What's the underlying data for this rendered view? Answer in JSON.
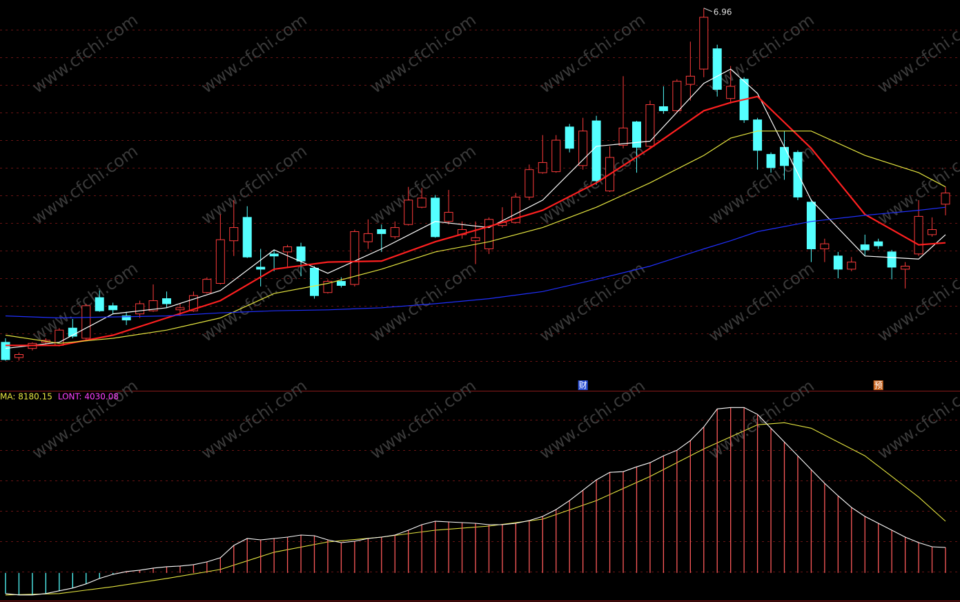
{
  "chart_data": [
    {
      "type": "candlestick",
      "ylim": [
        3.2,
        7.04
      ],
      "colors": {
        "up": "#ff3c3c",
        "down": "#54ffff"
      },
      "candles": {
        "open": [
          3.67,
          3.52,
          3.61,
          3.67,
          3.64,
          3.81,
          3.71,
          4.11,
          4.03,
          3.93,
          3.95,
          3.98,
          4.1,
          3.99,
          3.98,
          4.16,
          4.25,
          4.67,
          4.9,
          4.41,
          4.54,
          4.56,
          4.61,
          4.4,
          4.16,
          4.27,
          4.24,
          4.66,
          4.78,
          4.71,
          4.83,
          5.0,
          5.09,
          4.86,
          4.73,
          4.67,
          4.59,
          4.82,
          4.85,
          5.1,
          5.34,
          5.35,
          5.79,
          5.41,
          5.85,
          5.16,
          5.61,
          5.84,
          5.6,
          5.99,
          5.95,
          6.21,
          6.36,
          6.56,
          6.07,
          6.26,
          5.86,
          5.52,
          5.59,
          5.54,
          5.05,
          4.59,
          4.52,
          4.39,
          4.63,
          4.66,
          4.56,
          4.39,
          4.54,
          4.73,
          5.03
        ],
        "high": [
          3.71,
          3.57,
          3.67,
          3.71,
          3.81,
          3.9,
          4.05,
          4.18,
          4.06,
          3.97,
          4.08,
          4.24,
          4.17,
          4.05,
          4.17,
          4.31,
          4.93,
          5.07,
          5.01,
          4.59,
          4.58,
          4.63,
          4.65,
          4.42,
          4.29,
          4.31,
          4.78,
          4.88,
          4.83,
          4.86,
          5.2,
          5.19,
          5.12,
          5.17,
          4.86,
          4.86,
          4.9,
          5.0,
          5.14,
          5.42,
          5.71,
          5.71,
          5.82,
          5.88,
          5.9,
          5.6,
          6.29,
          5.85,
          6.05,
          6.19,
          6.26,
          6.63,
          6.96,
          6.6,
          6.39,
          6.28,
          5.88,
          5.54,
          5.75,
          5.56,
          5.08,
          4.69,
          4.56,
          4.51,
          4.73,
          4.69,
          4.58,
          4.46,
          5.07,
          4.9,
          5.2
        ],
        "low": [
          3.49,
          3.49,
          3.59,
          3.65,
          3.63,
          3.71,
          3.69,
          3.97,
          3.95,
          3.84,
          3.91,
          3.97,
          4.01,
          3.93,
          3.97,
          4.15,
          4.24,
          4.52,
          4.5,
          4.22,
          4.37,
          4.4,
          4.32,
          4.1,
          4.15,
          4.21,
          4.22,
          4.59,
          4.56,
          4.69,
          4.82,
          4.99,
          4.7,
          4.83,
          4.69,
          4.44,
          4.54,
          4.8,
          4.84,
          5.07,
          5.33,
          5.34,
          5.54,
          5.37,
          5.22,
          5.15,
          5.58,
          5.34,
          5.58,
          5.92,
          5.94,
          6.05,
          6.28,
          6.09,
          6.02,
          5.83,
          5.37,
          5.34,
          5.27,
          5.07,
          4.46,
          4.46,
          4.3,
          4.37,
          4.52,
          4.59,
          4.29,
          4.2,
          4.52,
          4.71,
          4.92
        ],
        "close": [
          3.5,
          3.55,
          3.66,
          3.69,
          3.79,
          3.73,
          4.03,
          3.98,
          3.99,
          3.89,
          4.05,
          4.08,
          4.05,
          4.01,
          4.13,
          4.29,
          4.68,
          4.8,
          4.51,
          4.39,
          4.52,
          4.61,
          4.47,
          4.13,
          4.27,
          4.23,
          4.76,
          4.74,
          4.74,
          4.8,
          5.07,
          5.09,
          4.71,
          4.95,
          4.78,
          4.7,
          4.88,
          4.85,
          5.1,
          5.37,
          5.44,
          5.66,
          5.58,
          5.75,
          5.26,
          5.49,
          5.78,
          5.59,
          6.01,
          5.95,
          6.24,
          6.29,
          6.87,
          6.16,
          6.19,
          5.86,
          5.56,
          5.39,
          5.41,
          5.1,
          4.59,
          4.64,
          4.39,
          4.46,
          4.58,
          4.62,
          4.41,
          4.42,
          4.91,
          4.78,
          5.14
        ]
      },
      "series": [
        {
          "color": "#ffffff",
          "x": [
            0,
            4,
            8,
            12,
            16,
            20,
            24,
            28,
            32,
            36,
            40,
            44,
            48,
            52,
            54,
            56,
            60,
            64,
            68,
            70
          ],
          "values": [
            3.61,
            3.67,
            3.95,
            4.01,
            4.18,
            4.58,
            4.35,
            4.59,
            4.86,
            4.8,
            5.07,
            5.6,
            5.65,
            6.22,
            6.36,
            6.12,
            5.07,
            4.52,
            4.49,
            4.73
          ]
        },
        {
          "color": "#ff2020",
          "width": 2.2,
          "x": [
            0,
            4,
            8,
            12,
            16,
            20,
            24,
            28,
            32,
            36,
            40,
            44,
            48,
            52,
            54,
            56,
            60,
            64,
            68,
            70
          ],
          "values": [
            3.64,
            3.64,
            3.74,
            3.91,
            4.08,
            4.39,
            4.46,
            4.47,
            4.66,
            4.81,
            4.97,
            5.24,
            5.58,
            5.95,
            6.03,
            6.09,
            5.58,
            4.93,
            4.63,
            4.65
          ]
        },
        {
          "color": "#e6e640",
          "x": [
            0,
            4,
            8,
            12,
            16,
            20,
            24,
            28,
            32,
            36,
            40,
            44,
            48,
            52,
            54,
            56,
            60,
            64,
            68,
            70
          ],
          "values": [
            3.74,
            3.66,
            3.71,
            3.79,
            3.91,
            4.15,
            4.25,
            4.39,
            4.56,
            4.66,
            4.8,
            5.0,
            5.24,
            5.51,
            5.68,
            5.75,
            5.75,
            5.51,
            5.34,
            5.2
          ]
        },
        {
          "color": "#2030ff",
          "x": [
            0,
            4,
            8,
            12,
            16,
            20,
            24,
            28,
            32,
            36,
            40,
            44,
            48,
            52,
            54,
            56,
            60,
            64,
            68,
            70
          ],
          "values": [
            3.93,
            3.91,
            3.92,
            3.93,
            3.96,
            3.98,
            3.99,
            4.01,
            4.05,
            4.1,
            4.17,
            4.29,
            4.42,
            4.59,
            4.67,
            4.76,
            4.86,
            4.92,
            4.97,
            5.0
          ]
        }
      ],
      "markers": [
        {
          "label": "财",
          "index": 43,
          "color": "#2a4fd8"
        },
        {
          "label": "预",
          "index": 65,
          "color": "#c8641e"
        }
      ],
      "watermark": "www.cfchi.com"
    },
    {
      "type": "bar-line",
      "ylim": [
        -4600,
        28600
      ],
      "bar_colors": {
        "up": "#ff5a5a",
        "down": "#54ffff"
      },
      "series": [
        {
          "legend_label": "MA: 8180.15",
          "label_color": "#e6e640",
          "color": "#e6e640",
          "x": [
            0,
            4,
            8,
            12,
            16,
            20,
            24,
            28,
            32,
            36,
            40,
            44,
            48,
            52,
            56,
            58,
            60,
            64,
            68,
            70
          ],
          "values": [
            -3488,
            -3270,
            -2180,
            -872,
            545,
            3270,
            4905,
            5668,
            6758,
            7412,
            8502,
            11445,
            15260,
            19620,
            23435,
            23762,
            22890,
            18530,
            11990,
            8180.15
          ]
        },
        {
          "legend_label": "LONT: 4030.08",
          "label_color": "#ff40ff",
          "color": "#ffffff",
          "bars": true,
          "values": [
            -3270,
            -3488,
            -3488,
            -3270,
            -2834,
            -2398,
            -1744,
            -872,
            -218,
            218,
            436,
            763,
            981,
            1090,
            1308,
            1744,
            2398,
            4360,
            5450,
            5232,
            5450,
            5668,
            5995,
            5886,
            5232,
            4796,
            5014,
            5450,
            5668,
            5995,
            6758,
            7630,
            8175,
            8066,
            7957,
            7848,
            7630,
            7630,
            7848,
            8284,
            8938,
            10028,
            11445,
            13080,
            14715,
            15914,
            16023,
            16786,
            17440,
            18530,
            19402,
            20928,
            23108,
            25942,
            26160,
            26160,
            25070,
            22890,
            20710,
            18530,
            16350,
            14170,
            12208,
            10355,
            8938,
            7848,
            6758,
            5668,
            4796,
            4142,
            4030.08
          ]
        }
      ]
    }
  ]
}
